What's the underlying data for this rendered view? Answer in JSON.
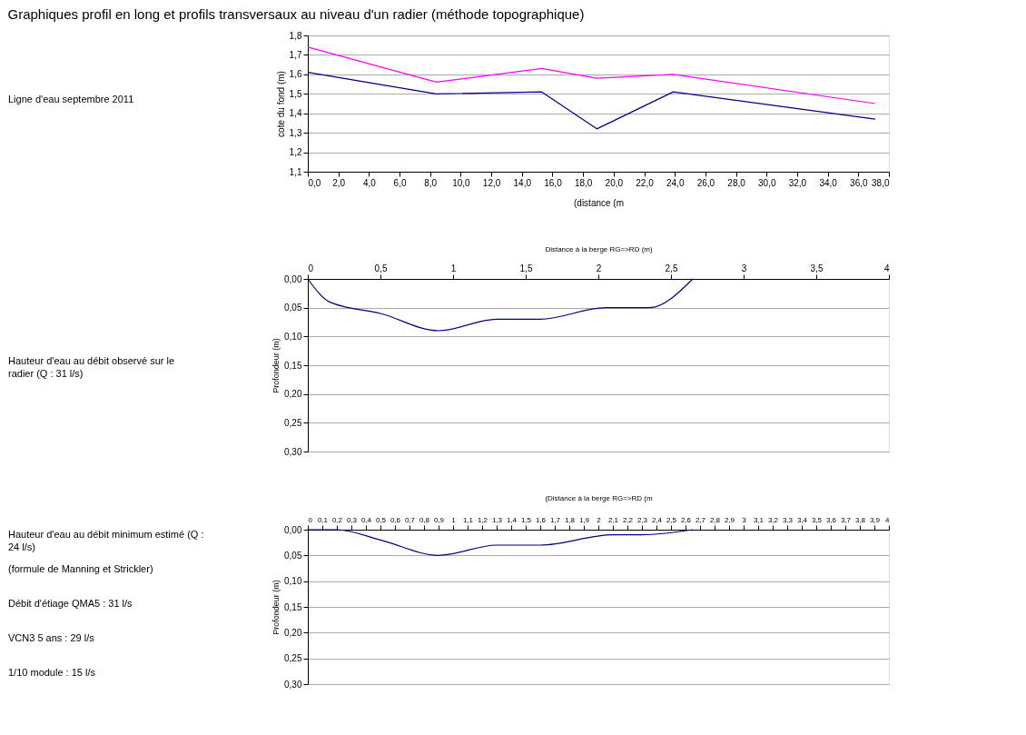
{
  "chart_data": [
    {
      "type": "line",
      "title": "Graphiques profil en long et profils transversaux au niveau d'un radier (méthode topographique)",
      "xlabel": "(distance (m",
      "ylabel": "cote du fond (m)",
      "annotations": [
        "Ligne d'eau septembre 2011"
      ],
      "grid": "y",
      "marker": "none",
      "line_style": "solid",
      "xlim": [
        0,
        38
      ],
      "xticks": [
        {
          "value": 0,
          "label": "0,0"
        },
        {
          "value": 2,
          "label": "2,0"
        },
        {
          "value": 4,
          "label": "4,0"
        },
        {
          "value": 6,
          "label": "6,0"
        },
        {
          "value": 8,
          "label": "8,0"
        },
        {
          "value": 10,
          "label": "10,0"
        },
        {
          "value": 12,
          "label": "12,0"
        },
        {
          "value": 14,
          "label": "14,0"
        },
        {
          "value": 16,
          "label": "16,0"
        },
        {
          "value": 18,
          "label": "18,0"
        },
        {
          "value": 20,
          "label": "20,0"
        },
        {
          "value": 22,
          "label": "22,0"
        },
        {
          "value": 24,
          "label": "24,0"
        },
        {
          "value": 26,
          "label": "26,0"
        },
        {
          "value": 28,
          "label": "28,0"
        },
        {
          "value": 30,
          "label": "30,0"
        },
        {
          "value": 32,
          "label": "32,0"
        },
        {
          "value": 34,
          "label": "34,0"
        },
        {
          "value": 36,
          "label": "36,0"
        },
        {
          "value": 38,
          "label": "38,0"
        }
      ],
      "ylim": [
        1.1,
        1.8
      ],
      "yticks": [
        {
          "value": 1.1,
          "label": "1,1"
        },
        {
          "value": 1.2,
          "label": "1,2"
        },
        {
          "value": 1.3,
          "label": "1,3"
        },
        {
          "value": 1.4,
          "label": "1,4"
        },
        {
          "value": 1.5,
          "label": "1,5"
        },
        {
          "value": 1.6,
          "label": "1,6"
        },
        {
          "value": 1.7,
          "label": "1,7"
        },
        {
          "value": 1.8,
          "label": "1,8"
        }
      ],
      "x": [
        0,
        8.4,
        15.3,
        18.9,
        23.9,
        37.1
      ],
      "series": [
        {
          "color": "#ff00ff",
          "values": [
            1.74,
            1.56,
            1.63,
            1.58,
            1.6,
            1.45
          ]
        },
        {
          "color": "#000080",
          "values": [
            1.61,
            1.5,
            1.51,
            1.32,
            1.51,
            1.37
          ]
        }
      ]
    },
    {
      "type": "line",
      "xlabel": "Distance à la berge RG=>RD (m)",
      "ylabel": "Profondeur (m)",
      "annotations": [
        "Hauteur d'eau au débit observé sur le radier (Q : 31 l/s)"
      ],
      "grid": "y",
      "marker": "none",
      "line_style": "solid",
      "xlim": [
        0,
        4
      ],
      "xticks": [
        0,
        {
          "value": 0.5,
          "label": "0,5"
        },
        1,
        {
          "value": 1.5,
          "label": "1,5"
        },
        2,
        {
          "value": 2.5,
          "label": "2,5"
        },
        3,
        {
          "value": 3.5,
          "label": "3,5"
        },
        4
      ],
      "ylim": [
        0.3,
        0
      ],
      "yticks": [
        {
          "value": 0,
          "label": "0,00"
        },
        {
          "value": 0.05,
          "label": "0,05"
        },
        {
          "value": 0.1,
          "label": "0,10"
        },
        {
          "value": 0.15,
          "label": "0,15"
        },
        {
          "value": 0.2,
          "label": "0,20"
        },
        {
          "value": 0.25,
          "label": "0,25"
        },
        {
          "value": 0.3,
          "label": "0,30"
        }
      ],
      "x": [
        0,
        0.15,
        0.5,
        0.9,
        1.3,
        1.6,
        2.05,
        2.35,
        2.65
      ],
      "series": [
        {
          "color": "#000080",
          "values": [
            0,
            0.04,
            0.06,
            0.09,
            0.07,
            0.07,
            0.05,
            0.05,
            0
          ]
        }
      ]
    },
    {
      "type": "line",
      "xlabel": "(Distance à la berge RG=>RD (m",
      "ylabel": "Profondeur (m)",
      "annotations": [
        "Hauteur d'eau au débit minimum estimé (Q : 24 l/s)",
        "(formule de Manning et Strickler)",
        "Débit d'étiage QMA5 : 31 l/s",
        "VCN3 5 ans : 29 l/s",
        "1/10 module : 15 l/s"
      ],
      "grid": "y",
      "marker": "none",
      "line_style": "solid",
      "xlim": [
        0,
        4
      ],
      "xticks": [
        0,
        {
          "value": 0.1,
          "label": "0,1"
        },
        {
          "value": 0.2,
          "label": "0,2"
        },
        {
          "value": 0.3,
          "label": "0,3"
        },
        {
          "value": 0.4,
          "label": "0,4"
        },
        {
          "value": 0.5,
          "label": "0,5"
        },
        {
          "value": 0.6,
          "label": "0,6"
        },
        {
          "value": 0.7,
          "label": "0,7"
        },
        {
          "value": 0.8,
          "label": "0,8"
        },
        {
          "value": 0.9,
          "label": "0,9"
        },
        1,
        {
          "value": 1.1,
          "label": "1,1"
        },
        {
          "value": 1.2,
          "label": "1,2"
        },
        {
          "value": 1.3,
          "label": "1,3"
        },
        {
          "value": 1.4,
          "label": "1,4"
        },
        {
          "value": 1.5,
          "label": "1,5"
        },
        {
          "value": 1.6,
          "label": "1,6"
        },
        {
          "value": 1.7,
          "label": "1,7"
        },
        {
          "value": 1.8,
          "label": "1,8"
        },
        {
          "value": 1.9,
          "label": "1,9"
        },
        2,
        {
          "value": 2.1,
          "label": "2,1"
        },
        {
          "value": 2.2,
          "label": "2,2"
        },
        {
          "value": 2.3,
          "label": "2,3"
        },
        {
          "value": 2.4,
          "label": "2,4"
        },
        {
          "value": 2.5,
          "label": "2,5"
        },
        {
          "value": 2.6,
          "label": "2,6"
        },
        {
          "value": 2.7,
          "label": "2,7"
        },
        {
          "value": 2.8,
          "label": "2,8"
        },
        {
          "value": 2.9,
          "label": "2,9"
        },
        3,
        {
          "value": 3.1,
          "label": "3,1"
        },
        {
          "value": 3.2,
          "label": "3,2"
        },
        {
          "value": 3.3,
          "label": "3,3"
        },
        {
          "value": 3.4,
          "label": "3,4"
        },
        {
          "value": 3.5,
          "label": "3,5"
        },
        {
          "value": 3.6,
          "label": "3,6"
        },
        {
          "value": 3.7,
          "label": "3,7"
        },
        {
          "value": 3.8,
          "label": "3,8"
        },
        {
          "value": 3.9,
          "label": "3,9"
        },
        4
      ],
      "ylim": [
        0.3,
        0
      ],
      "yticks": [
        {
          "value": 0,
          "label": "0,00"
        },
        {
          "value": 0.05,
          "label": "0,05"
        },
        {
          "value": 0.1,
          "label": "0,10"
        },
        {
          "value": 0.15,
          "label": "0,15"
        },
        {
          "value": 0.2,
          "label": "0,20"
        },
        {
          "value": 0.25,
          "label": "0,25"
        },
        {
          "value": 0.3,
          "label": "0,30"
        }
      ],
      "x": [
        0,
        0.2,
        0.5,
        0.9,
        1.3,
        1.6,
        2.1,
        2.3,
        2.65
      ],
      "series": [
        {
          "color": "#000080",
          "values": [
            0,
            0,
            0.02,
            0.05,
            0.03,
            0.03,
            0.01,
            0.01,
            0
          ]
        }
      ]
    }
  ]
}
